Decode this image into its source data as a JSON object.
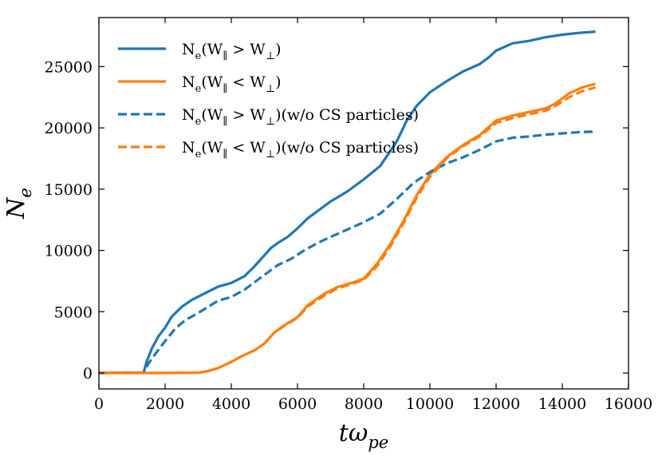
{
  "chart_data": {
    "type": "line",
    "title": "",
    "xlabel": "tω_pe",
    "ylabel": "N_e",
    "xlim": [
      0,
      16000
    ],
    "ylim": [
      -1300,
      29000
    ],
    "xticks": [
      0,
      2000,
      4000,
      6000,
      8000,
      10000,
      12000,
      14000,
      16000
    ],
    "xtick_labels": [
      "0",
      "2000",
      "4000",
      "6000",
      "8000",
      "10000",
      "12000",
      "14000",
      "16000"
    ],
    "yticks": [
      0,
      5000,
      10000,
      15000,
      20000,
      25000
    ],
    "ytick_labels": [
      "0",
      "5000",
      "10000",
      "15000",
      "20000",
      "25000"
    ],
    "grid": false,
    "legend_position": "top-left",
    "series": [
      {
        "name": "N_e(W_∥ > W_⊥)",
        "color": "#1f77b4",
        "dash": "solid",
        "points": [
          [
            0,
            0
          ],
          [
            1350,
            30
          ],
          [
            1450,
            1000
          ],
          [
            1600,
            2000
          ],
          [
            1800,
            3000
          ],
          [
            2000,
            3700
          ],
          [
            2200,
            4600
          ],
          [
            2500,
            5400
          ],
          [
            2800,
            5950
          ],
          [
            3200,
            6500
          ],
          [
            3600,
            7050
          ],
          [
            4000,
            7350
          ],
          [
            4400,
            7900
          ],
          [
            4700,
            8700
          ],
          [
            5000,
            9600
          ],
          [
            5200,
            10200
          ],
          [
            5400,
            10600
          ],
          [
            5700,
            11100
          ],
          [
            6000,
            11800
          ],
          [
            6300,
            12600
          ],
          [
            6600,
            13200
          ],
          [
            7000,
            14000
          ],
          [
            7500,
            14800
          ],
          [
            8000,
            15800
          ],
          [
            8500,
            16900
          ],
          [
            9000,
            18900
          ],
          [
            9300,
            20600
          ],
          [
            9600,
            21800
          ],
          [
            10000,
            22900
          ],
          [
            10500,
            23800
          ],
          [
            11000,
            24600
          ],
          [
            11500,
            25200
          ],
          [
            11800,
            25800
          ],
          [
            12000,
            26300
          ],
          [
            12500,
            26900
          ],
          [
            13000,
            27100
          ],
          [
            13500,
            27400
          ],
          [
            14000,
            27600
          ],
          [
            14500,
            27750
          ],
          [
            15000,
            27850
          ]
        ]
      },
      {
        "name": "N_e(W_∥ < W_⊥)",
        "color": "#ff7f0e",
        "dash": "solid",
        "points": [
          [
            0,
            0
          ],
          [
            2000,
            0
          ],
          [
            3000,
            20
          ],
          [
            3300,
            150
          ],
          [
            3600,
            400
          ],
          [
            4000,
            900
          ],
          [
            4300,
            1350
          ],
          [
            4700,
            1850
          ],
          [
            5000,
            2400
          ],
          [
            5300,
            3300
          ],
          [
            5600,
            3900
          ],
          [
            6000,
            4550
          ],
          [
            6300,
            5500
          ],
          [
            6800,
            6450
          ],
          [
            7200,
            7000
          ],
          [
            7800,
            7500
          ],
          [
            8000,
            7700
          ],
          [
            8400,
            8900
          ],
          [
            8800,
            10500
          ],
          [
            9200,
            12400
          ],
          [
            9600,
            14500
          ],
          [
            10000,
            16200
          ],
          [
            10500,
            17600
          ],
          [
            11000,
            18600
          ],
          [
            11500,
            19400
          ],
          [
            12000,
            20600
          ],
          [
            12500,
            21000
          ],
          [
            13000,
            21300
          ],
          [
            13500,
            21600
          ],
          [
            13800,
            22000
          ],
          [
            14200,
            22800
          ],
          [
            14600,
            23300
          ],
          [
            15000,
            23600
          ]
        ]
      },
      {
        "name": "N_e(W_∥ > W_⊥)(w/o CS particles)",
        "color": "#1f77b4",
        "dash": "dashed",
        "points": [
          [
            0,
            0
          ],
          [
            1350,
            30
          ],
          [
            1500,
            800
          ],
          [
            1800,
            1900
          ],
          [
            2000,
            2600
          ],
          [
            2300,
            3600
          ],
          [
            2600,
            4300
          ],
          [
            3000,
            4900
          ],
          [
            3300,
            5400
          ],
          [
            3600,
            5900
          ],
          [
            4000,
            6200
          ],
          [
            4400,
            6800
          ],
          [
            4800,
            7600
          ],
          [
            5200,
            8400
          ],
          [
            5400,
            8800
          ],
          [
            5800,
            9300
          ],
          [
            6200,
            10000
          ],
          [
            6600,
            10600
          ],
          [
            7000,
            11100
          ],
          [
            7500,
            11700
          ],
          [
            8000,
            12300
          ],
          [
            8500,
            13000
          ],
          [
            9000,
            14200
          ],
          [
            9500,
            15500
          ],
          [
            10000,
            16400
          ],
          [
            10500,
            17100
          ],
          [
            11000,
            17600
          ],
          [
            11500,
            18200
          ],
          [
            12000,
            18900
          ],
          [
            12500,
            19200
          ],
          [
            13000,
            19300
          ],
          [
            13500,
            19450
          ],
          [
            14000,
            19550
          ],
          [
            14500,
            19650
          ],
          [
            15000,
            19700
          ]
        ]
      },
      {
        "name": "N_e(W_∥ < W_⊥)(w/o CS particles)",
        "color": "#ff7f0e",
        "dash": "dashed",
        "points": [
          [
            0,
            0
          ],
          [
            2000,
            0
          ],
          [
            3000,
            20
          ],
          [
            3300,
            150
          ],
          [
            3600,
            400
          ],
          [
            4000,
            900
          ],
          [
            4300,
            1350
          ],
          [
            4700,
            1850
          ],
          [
            5000,
            2400
          ],
          [
            5300,
            3300
          ],
          [
            5600,
            3850
          ],
          [
            6000,
            4500
          ],
          [
            6300,
            5400
          ],
          [
            6800,
            6300
          ],
          [
            7200,
            6900
          ],
          [
            7800,
            7400
          ],
          [
            8000,
            7600
          ],
          [
            8400,
            8700
          ],
          [
            8800,
            10300
          ],
          [
            9200,
            12200
          ],
          [
            9600,
            14300
          ],
          [
            10000,
            16000
          ],
          [
            10500,
            17500
          ],
          [
            11000,
            18500
          ],
          [
            11500,
            19300
          ],
          [
            12000,
            20400
          ],
          [
            12500,
            20800
          ],
          [
            13000,
            21100
          ],
          [
            13500,
            21400
          ],
          [
            13800,
            21800
          ],
          [
            14200,
            22500
          ],
          [
            14600,
            23000
          ],
          [
            15000,
            23300
          ]
        ]
      }
    ]
  }
}
